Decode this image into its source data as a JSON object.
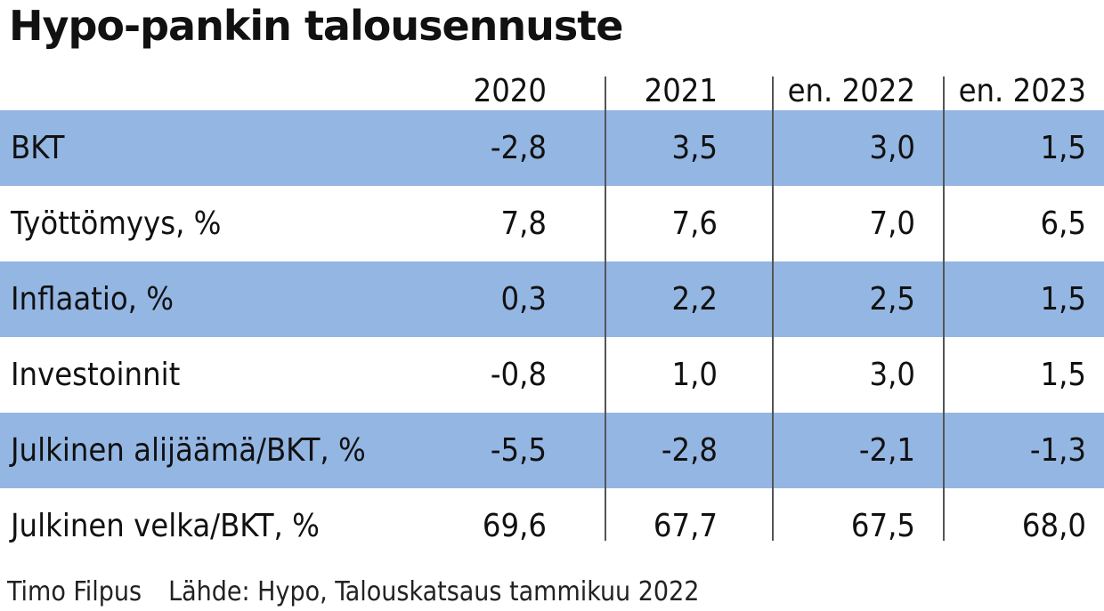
{
  "chart_data": {
    "type": "table",
    "title": "Hypo-pankin talousennuste",
    "columns": [
      "2020",
      "2021",
      "en. 2022",
      "en. 2023"
    ],
    "rows": [
      {
        "label": "BKT",
        "values": [
          "-2,8",
          "3,5",
          "3,0",
          "1,5"
        ]
      },
      {
        "label": "Työttömyys, %",
        "values": [
          "7,8",
          "7,6",
          "7,0",
          "6,5"
        ]
      },
      {
        "label": "Inflaatio, %",
        "values": [
          "0,3",
          "2,2",
          "2,5",
          "1,5"
        ]
      },
      {
        "label": "Investoinnit",
        "values": [
          "-0,8",
          "1,0",
          "3,0",
          "1,5"
        ]
      },
      {
        "label": "Julkinen alijäämä/BKT, %",
        "values": [
          "-5,5",
          "-2,8",
          "-2,1",
          "-1,3"
        ]
      },
      {
        "label": "Julkinen velka/BKT, %",
        "values": [
          "69,6",
          "67,7",
          "67,5",
          "68,0"
        ]
      }
    ],
    "banded_rows": [
      0,
      2,
      4
    ],
    "band_color": "#94b6e3"
  },
  "footer": {
    "author": "Timo Filpus",
    "source": "Lähde: Hypo, Talouskatsaus tammikuu 2022"
  }
}
